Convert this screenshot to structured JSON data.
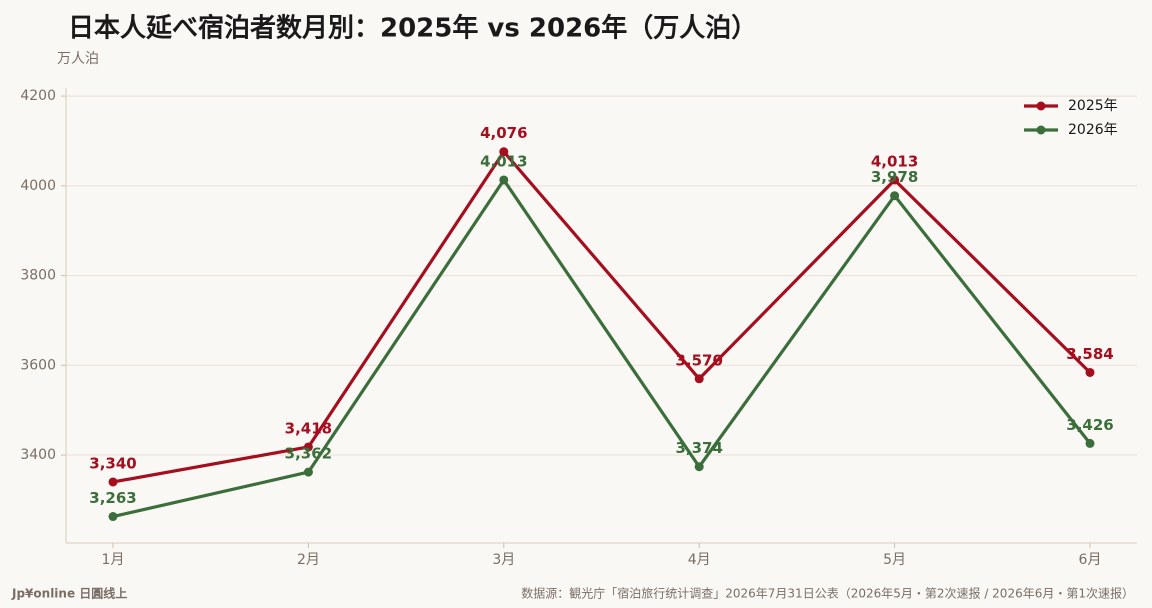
{
  "chart_data": {
    "type": "line",
    "title": "日本人延べ宿泊者数月別：2025年 vs 2026年（万人泊）",
    "y_label": "万人泊",
    "categories": [
      "1月",
      "2月",
      "3月",
      "4月",
      "5月",
      "6月"
    ],
    "series": [
      {
        "name": "2025年",
        "color": "#a50e1e",
        "values": [
          3340,
          3418,
          4076,
          3570,
          4013,
          3584
        ],
        "value_labels": [
          "3,340",
          "3,418",
          "4,076",
          "3,570",
          "4,013",
          "3,584"
        ]
      },
      {
        "name": "2026年",
        "color": "#3b6e3b",
        "values": [
          3263,
          3362,
          4013,
          3374,
          3978,
          3426
        ],
        "value_labels": [
          "3,263",
          "3,362",
          "4,013",
          "3,374",
          "3,978",
          "3,426"
        ]
      }
    ],
    "ylim": [
      3204,
      4218
    ],
    "yticks": [
      3400,
      3600,
      3800,
      4000,
      4200
    ],
    "grid": true,
    "legend": "upper right",
    "brand": "Jp¥online 日圓线上",
    "source": "数据源：観光庁「宿泊旅行统计调查」2026年7月31日公表（2026年5月・第2次速报 / 2026年6月・第1次速报）"
  }
}
